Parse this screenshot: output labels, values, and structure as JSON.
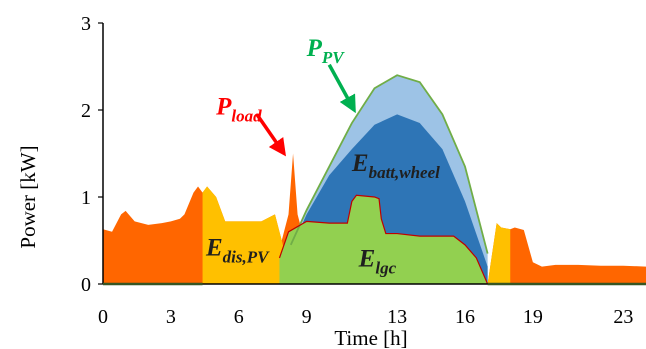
{
  "chart_data": {
    "type": "area",
    "title": "",
    "xlabel": "Time [h]",
    "ylabel": "Power [kW]",
    "xlim": [
      0,
      24
    ],
    "ylim": [
      0,
      3
    ],
    "xticks": [
      0,
      3,
      6,
      9,
      13,
      16,
      19,
      23
    ],
    "yticks": [
      0,
      1,
      2,
      3
    ],
    "grid": false,
    "legend": "none",
    "colors": {
      "load_red": "#ff6600",
      "dis_pv": "#ffc000",
      "lgc": "#92d050",
      "batt_wheel": "#2e75b6",
      "pv_light": "#9dc3e6",
      "pv_line": "#70ad47",
      "lgc_line": "#c00000",
      "p_pv_label": "#00b050",
      "p_load_label": "#ff0000",
      "axis": "#000000"
    },
    "series": [
      {
        "key": "P_PV",
        "x": [
          8.3,
          9.0,
          10.0,
          11.0,
          12.0,
          13.0,
          14.0,
          15.0,
          16.0,
          17.0
        ],
        "y": [
          0.45,
          0.85,
          1.35,
          1.85,
          2.25,
          2.4,
          2.32,
          1.95,
          1.35,
          0.35
        ]
      },
      {
        "key": "E_batt_wheel_top",
        "x": [
          8.3,
          9.0,
          10.0,
          11.0,
          12.0,
          13.0,
          14.0,
          15.0,
          16.0,
          17.0
        ],
        "y": [
          0.4,
          0.8,
          1.25,
          1.55,
          1.83,
          1.95,
          1.85,
          1.55,
          0.95,
          0.2
        ]
      },
      {
        "key": "E_lgc_top",
        "x": [
          7.8,
          8.2,
          9.0,
          10.0,
          10.8,
          11.0,
          11.2,
          12.0,
          12.2,
          12.3,
          12.5,
          13.0,
          14.0,
          15.0,
          15.5,
          16.0,
          16.5,
          17.0
        ],
        "y": [
          0.3,
          0.6,
          0.72,
          0.7,
          0.7,
          0.95,
          1.02,
          1.0,
          0.98,
          0.75,
          0.58,
          0.58,
          0.55,
          0.55,
          0.55,
          0.45,
          0.3,
          0.0
        ]
      },
      {
        "key": "P_load",
        "x": [
          0.0,
          0.4,
          0.8,
          1.0,
          1.4,
          2.0,
          2.6,
          3.0,
          3.4,
          3.6,
          4.0,
          4.2,
          4.4,
          4.6,
          5.0,
          5.4,
          6.0,
          7.0,
          7.6,
          7.9,
          8.2,
          8.4,
          8.6,
          8.8,
          9.0,
          17.0,
          17.4,
          17.6,
          18.0,
          18.2,
          18.6,
          19.0,
          19.4,
          20.0,
          21.0,
          22.0,
          23.0,
          24.0
        ],
        "y": [
          0.63,
          0.6,
          0.8,
          0.84,
          0.72,
          0.68,
          0.7,
          0.72,
          0.75,
          0.8,
          1.05,
          1.12,
          1.05,
          1.12,
          1.0,
          0.72,
          0.72,
          0.72,
          0.8,
          0.5,
          0.8,
          1.5,
          0.8,
          0.6,
          0.45,
          0.0,
          0.7,
          0.65,
          0.63,
          0.65,
          0.62,
          0.25,
          0.2,
          0.22,
          0.22,
          0.21,
          0.21,
          0.2
        ]
      },
      {
        "key": "E_dis_PV_top",
        "x": [
          4.4,
          4.6,
          5.0,
          5.4,
          6.0,
          7.0,
          7.6,
          7.9,
          8.0
        ],
        "y": [
          1.05,
          1.12,
          1.0,
          0.72,
          0.72,
          0.72,
          0.8,
          0.5,
          0.4
        ]
      },
      {
        "key": "E_dis_PV_evening_top",
        "x": [
          17.0,
          17.4,
          17.6,
          18.0
        ],
        "y": [
          0.0,
          0.7,
          0.65,
          0.63
        ]
      }
    ],
    "annotations": [
      {
        "key": "P_PV",
        "main": "P",
        "sub": "PV",
        "text_at": [
          9.0,
          2.62
        ],
        "arrow_from": [
          10.0,
          2.52
        ],
        "arrow_to": [
          11.1,
          2.0
        ]
      },
      {
        "key": "P_load",
        "main": "P",
        "sub": "load",
        "text_at": [
          5.0,
          1.95
        ],
        "arrow_from": [
          6.8,
          1.95
        ],
        "arrow_to": [
          8.0,
          1.5
        ]
      },
      {
        "key": "E_batt_wheel",
        "main": "E",
        "sub": "batt,wheel",
        "text_at": [
          11.0,
          1.3
        ]
      },
      {
        "key": "E_dis_PV",
        "main": "E",
        "sub": "dis,PV",
        "text_at": [
          4.55,
          0.33
        ]
      },
      {
        "key": "E_lgc",
        "main": "E",
        "sub": "lgc",
        "text_at": [
          11.3,
          0.2
        ]
      }
    ]
  }
}
